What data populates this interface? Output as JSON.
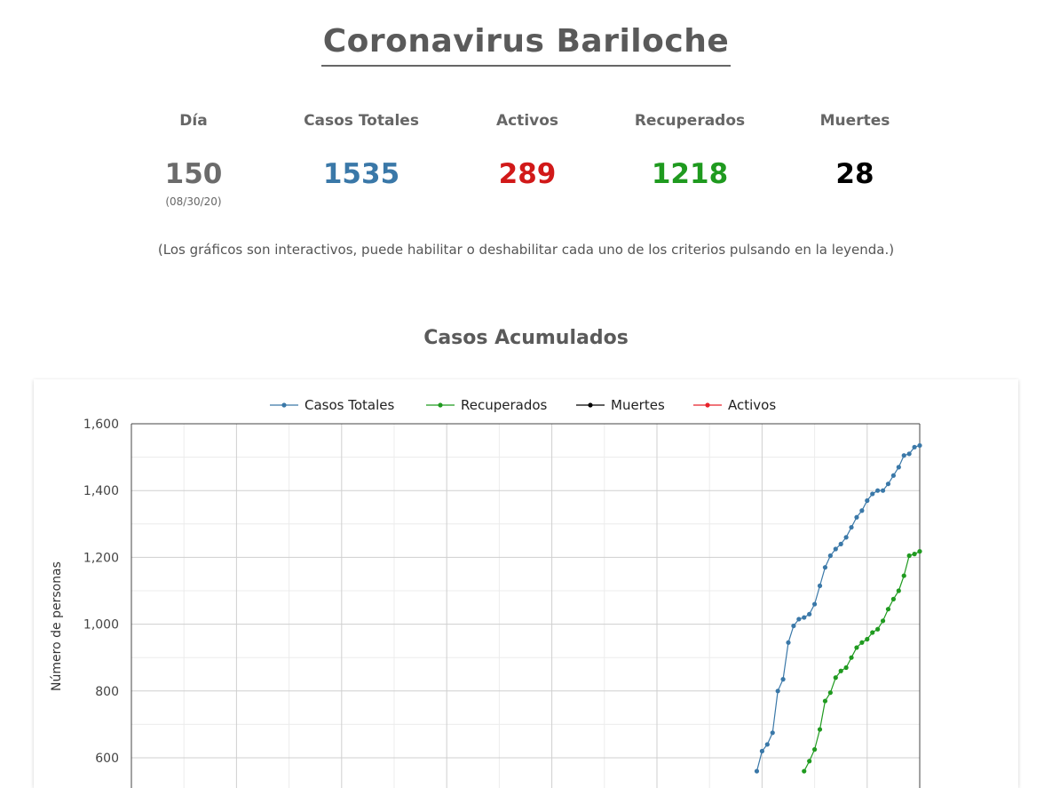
{
  "header": {
    "title": "Coronavirus Bariloche"
  },
  "stats": [
    {
      "label": "Día",
      "value": "150",
      "sub": "(08/30/20)",
      "color": "#6b6b6b"
    },
    {
      "label": "Casos Totales",
      "value": "1535",
      "color": "#3a78a8"
    },
    {
      "label": "Activos",
      "value": "289",
      "color": "#d11919"
    },
    {
      "label": "Recuperados",
      "value": "1218",
      "color": "#1f9a1f"
    },
    {
      "label": "Muertes",
      "value": "28",
      "color": "#000000"
    }
  ],
  "note": "(Los gráficos son interactivos, puede habilitar o deshabilitar cada uno de los criterios pulsando en la leyenda.)",
  "chart_data": {
    "type": "line",
    "title": "Casos Acumulados",
    "xlabel": "",
    "ylabel": "Número de personas",
    "ylim": [
      600,
      1600
    ],
    "xlim": [
      0,
      150
    ],
    "yticks": [
      600,
      800,
      1000,
      1200,
      1400,
      1600
    ],
    "grid": true,
    "legend": "top-center",
    "series": [
      {
        "name": "Casos Totales",
        "color": "#3a78a8",
        "x": [
          119,
          120,
          121,
          122,
          123,
          124,
          125,
          126,
          127,
          128,
          129,
          130,
          131,
          132,
          133,
          134,
          135,
          136,
          137,
          138,
          139,
          140,
          141,
          142,
          143,
          144,
          145,
          146,
          147,
          148,
          149,
          150
        ],
        "values": [
          560,
          620,
          640,
          675,
          800,
          835,
          945,
          995,
          1015,
          1020,
          1030,
          1060,
          1115,
          1170,
          1205,
          1225,
          1240,
          1260,
          1290,
          1320,
          1340,
          1370,
          1390,
          1400,
          1400,
          1420,
          1445,
          1470,
          1505,
          1510,
          1530,
          1535
        ]
      },
      {
        "name": "Recuperados",
        "color": "#1f9a1f",
        "x": [
          128,
          129,
          130,
          131,
          132,
          133,
          134,
          135,
          136,
          137,
          138,
          139,
          140,
          141,
          142,
          143,
          144,
          145,
          146,
          147,
          148,
          149,
          150
        ],
        "values": [
          560,
          590,
          625,
          685,
          770,
          795,
          840,
          860,
          870,
          900,
          930,
          945,
          955,
          975,
          985,
          1010,
          1045,
          1075,
          1100,
          1145,
          1205,
          1210,
          1218
        ]
      },
      {
        "name": "Muertes",
        "color": "#000000",
        "x": [],
        "values": []
      },
      {
        "name": "Activos",
        "color": "#e8222a",
        "x": [],
        "values": []
      }
    ]
  }
}
